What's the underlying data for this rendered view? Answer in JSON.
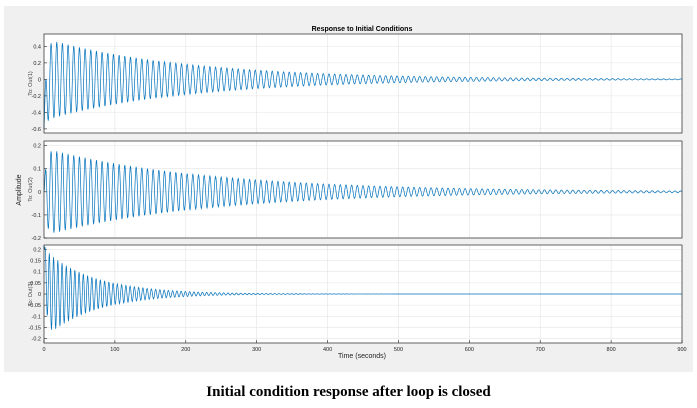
{
  "caption": "Initial condition response after loop is closed",
  "chart_data": {
    "type": "line",
    "title": "Response to Initial Conditions",
    "xlabel": "Time (seconds)",
    "ylabel": "Amplitude",
    "xlim": [
      0,
      900
    ],
    "x_ticks": [
      0,
      100,
      200,
      300,
      400,
      500,
      600,
      700,
      800,
      900
    ],
    "grid": true,
    "line_color": "#0072bd",
    "subplots": [
      {
        "ylabel": "To: Out(1)",
        "ylim": [
          -0.65,
          0.55
        ],
        "y_ticks": [
          0.4,
          0.2,
          0,
          -0.2,
          -0.4,
          -0.6
        ],
        "y_tick_labels": [
          "0.4",
          "0.2",
          "0",
          "-0.2",
          "-0.4",
          "-0.6"
        ],
        "series": {
          "initial_value": -0.6,
          "peak_amplitude": 0.5,
          "period": 8,
          "decay_time_constant": 200,
          "t_end": 900
        }
      },
      {
        "ylabel": "To: Out(2)",
        "ylim": [
          -0.2,
          0.22
        ],
        "y_ticks": [
          0.2,
          0.1,
          0,
          -0.1,
          -0.2
        ],
        "y_tick_labels": [
          "0.2",
          "0.1",
          "0",
          "-0.1",
          "-0.2"
        ],
        "series": {
          "initial_value": 0,
          "peak_amplitude": 0.19,
          "period": 8,
          "decay_time_constant": 230,
          "t_end": 900
        }
      },
      {
        "ylabel": "To: Out(3)",
        "ylim": [
          -0.22,
          0.22
        ],
        "y_ticks": [
          0.2,
          0.15,
          0.1,
          0.05,
          0,
          -0.05,
          -0.1,
          -0.15,
          -0.2
        ],
        "y_tick_labels": [
          "0.2",
          "0.15",
          "0.1",
          "0.05",
          "0",
          "-0.05",
          "-0.1",
          "-0.15",
          "-0.2"
        ],
        "series": {
          "initial_value": 0.22,
          "peak_amplitude": 0.2,
          "period": 6,
          "decay_time_constant": 70,
          "t_end": 900
        }
      }
    ]
  }
}
